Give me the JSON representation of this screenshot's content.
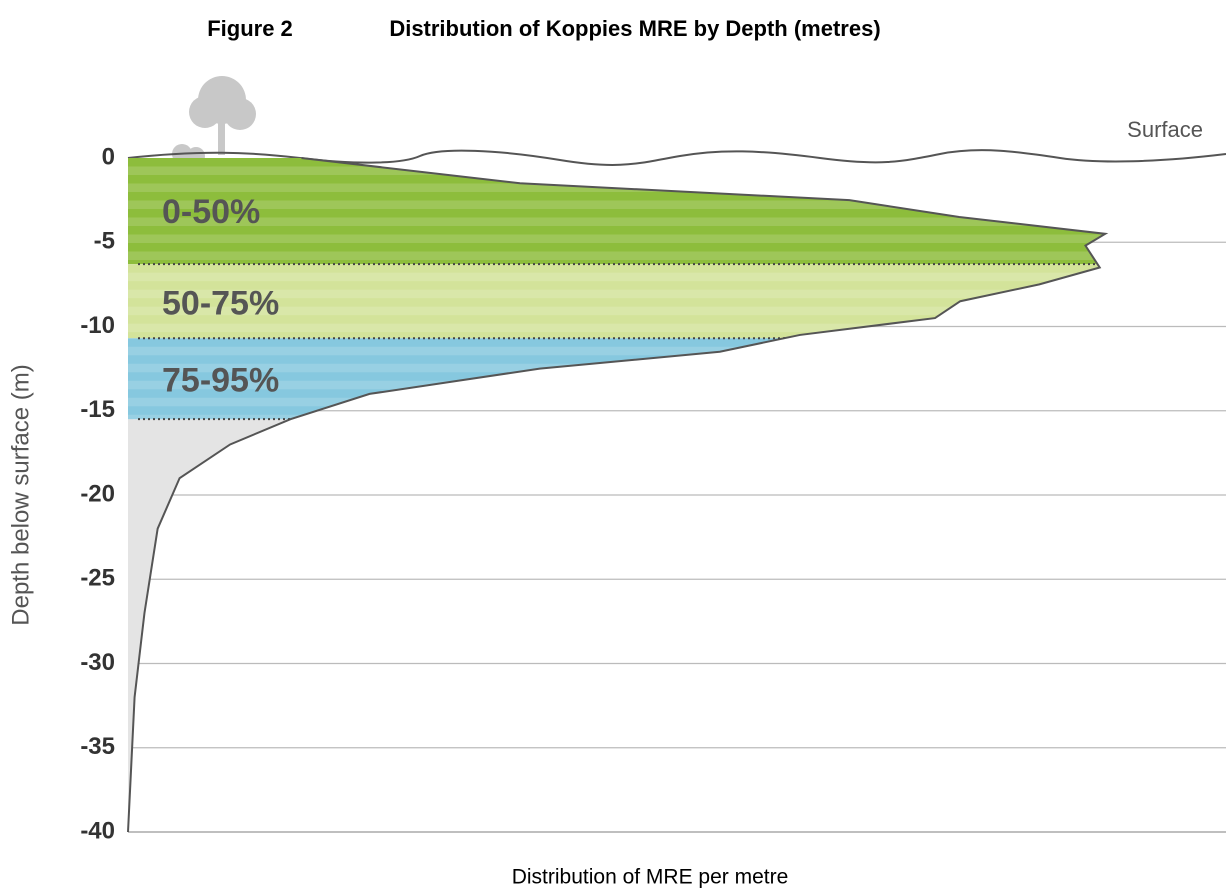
{
  "chart_data": {
    "type": "depth-profile",
    "figure_label": "Figure 2",
    "title": "Distribution of Koppies MRE by Depth (metres)",
    "y_label": "Depth below surface (m)",
    "x_label": "Distribution of MRE per metre",
    "surface_label": "Surface",
    "ylim": [
      -40,
      0
    ],
    "yticks": [
      0,
      -5,
      -10,
      -15,
      -20,
      -25,
      -30,
      -35,
      -40
    ],
    "xlim": [
      0,
      100
    ],
    "grid": true,
    "profile": {
      "depth": [
        0,
        -1.5,
        -2.5,
        -3.5,
        -4.5,
        -5.2,
        -6.5,
        -7.5,
        -8.5,
        -9.5,
        -10.5,
        -11.5,
        -12.5,
        -14,
        -15.5,
        -17,
        -19,
        -22,
        -27,
        -32,
        -40
      ],
      "mre": [
        15.8,
        35.7,
        65.7,
        75.7,
        89,
        87.2,
        88.5,
        83,
        75.8,
        73.5,
        61.2,
        53.9,
        37.5,
        22,
        14.8,
        9.3,
        4.7,
        2.7,
        1.5,
        0.6,
        0
      ],
      "color": "#555555"
    },
    "zones": [
      {
        "label": "0-50%",
        "top": 0,
        "bottom": -6.3,
        "color": "#8dbd3c"
      },
      {
        "label": "50-75%",
        "top": -6.3,
        "bottom": -10.7,
        "color": "#d3e39a"
      },
      {
        "label": "75-95%",
        "top": -10.7,
        "bottom": -15.5,
        "color": "#86c8df"
      }
    ],
    "tail_color": "#e4e4e4"
  }
}
